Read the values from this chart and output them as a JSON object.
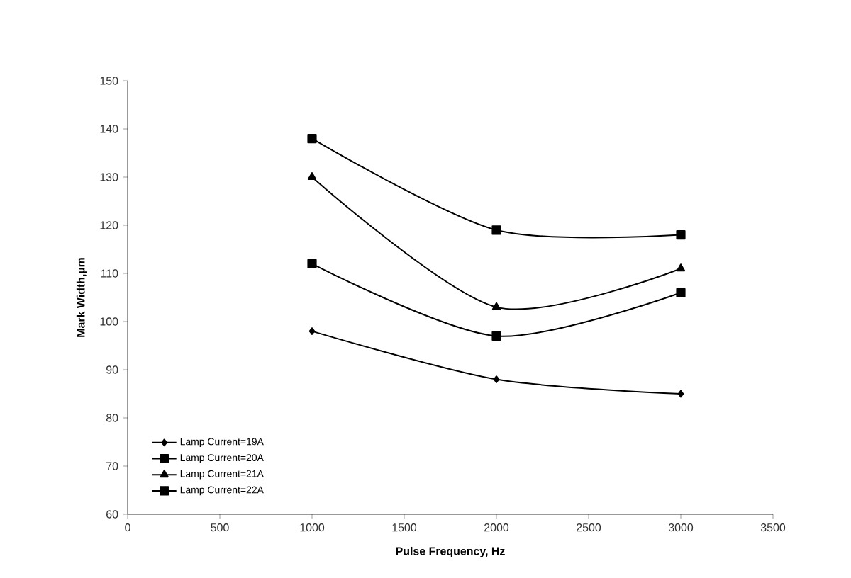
{
  "chart_data": {
    "type": "line",
    "xlabel": "Pulse Frequency, Hz",
    "ylabel": "Mark Width,µm",
    "xlim": [
      0,
      3500
    ],
    "xticks": [
      0,
      500,
      1000,
      1500,
      2000,
      2500,
      3000,
      3500
    ],
    "ylim": [
      60,
      150
    ],
    "yticks": [
      60,
      70,
      80,
      90,
      100,
      110,
      120,
      130,
      140,
      150
    ],
    "x": [
      1000,
      2000,
      3000
    ],
    "legend": "bottom left",
    "grid": false,
    "series": [
      {
        "name": "Lamp Current=19A",
        "color": "#000000",
        "marker": "diamond",
        "values": [
          98,
          88,
          85
        ]
      },
      {
        "name": "Lamp Current=20A",
        "color": "#000000",
        "marker": "square",
        "values": [
          112,
          97,
          106
        ]
      },
      {
        "name": "Lamp Current=21A",
        "color": "#000000",
        "marker": "triangle",
        "values": [
          130,
          103,
          111
        ]
      },
      {
        "name": "Lamp Current=22A",
        "color": "#000000",
        "marker": "square",
        "values": [
          138,
          119,
          118
        ]
      }
    ]
  }
}
